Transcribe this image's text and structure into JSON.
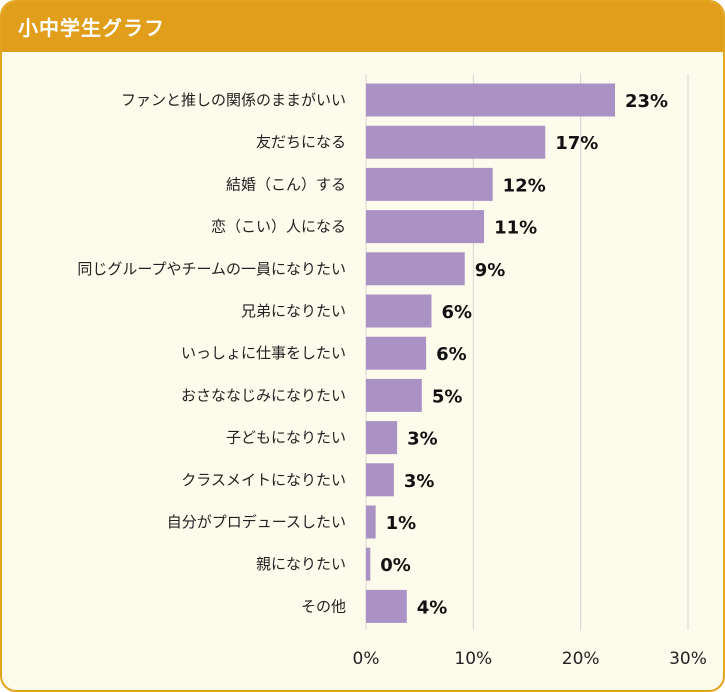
{
  "header": {
    "title": "小中学生グラフ"
  },
  "colors": {
    "bar": "#ab92c4",
    "header": "#e09e1b",
    "background": "#fdfbec",
    "grid": "#d4d4d4"
  },
  "chart_data": {
    "type": "bar",
    "orientation": "horizontal",
    "title": "小中学生グラフ",
    "categories": [
      "ファンと推しの関係のままがいい",
      "友だちになる",
      "結婚（こん）する",
      "恋（こい）人になる",
      "同じグループやチームの一員になりたい",
      "兄弟になりたい",
      "いっしょに仕事をしたい",
      "おさななじみになりたい",
      "子どもになりたい",
      "クラスメイトになりたい",
      "自分がプロデュースしたい",
      "親になりたい",
      "その他"
    ],
    "values": [
      23.2,
      16.7,
      11.8,
      11.0,
      9.2,
      6.1,
      5.6,
      5.2,
      2.9,
      2.6,
      0.9,
      0.4,
      3.8
    ],
    "value_labels": [
      "23%",
      "17%",
      "12%",
      "11%",
      "9%",
      "6%",
      "6%",
      "5%",
      "3%",
      "3%",
      "1%",
      "0%",
      "4%"
    ],
    "xlim": [
      0,
      30
    ],
    "xticks": [
      "0%",
      "10%",
      "20%",
      "30%"
    ],
    "grid": true,
    "legend": "none",
    "xlabel": "",
    "ylabel": ""
  }
}
